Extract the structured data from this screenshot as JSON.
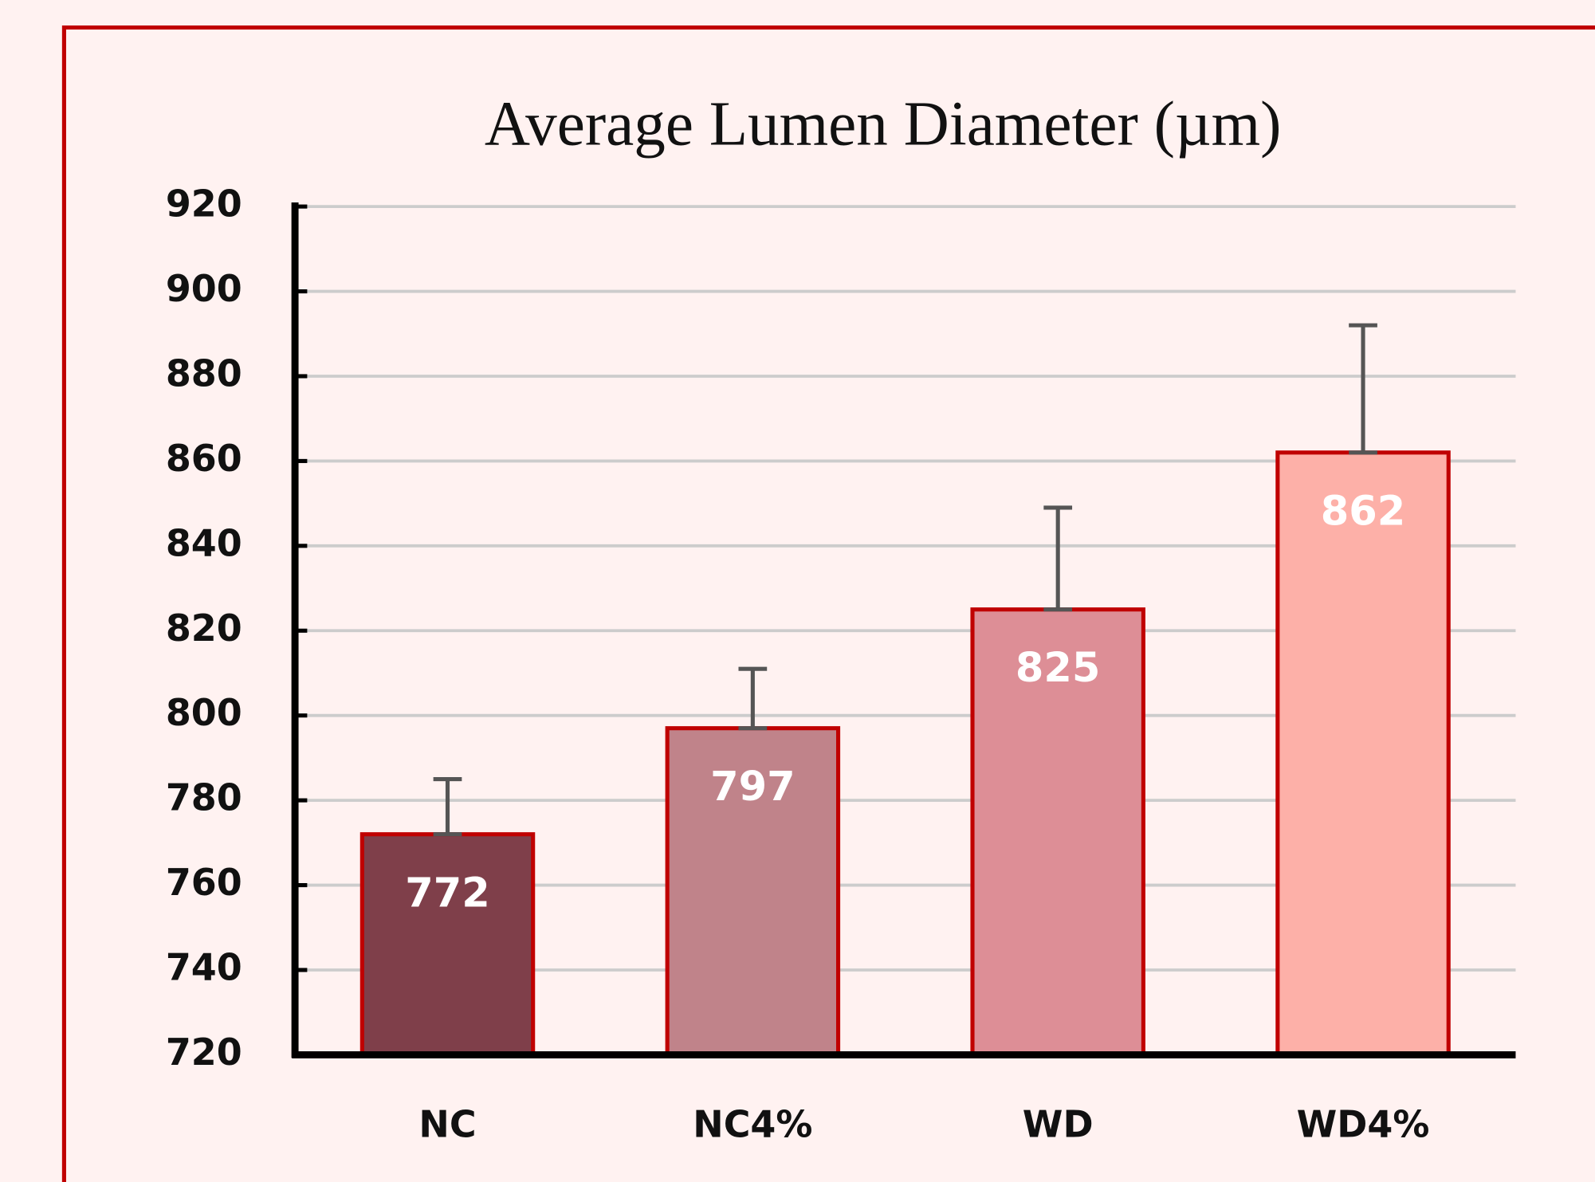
{
  "chart_data": {
    "type": "bar",
    "title": "Average Lumen Diameter (µm)",
    "categories": [
      "NC",
      "NC4%",
      "WD",
      "WD4%"
    ],
    "values": [
      772,
      797,
      825,
      862
    ],
    "errors": [
      13,
      14,
      24,
      30
    ],
    "colors": [
      "#7f3f4a",
      "#c0838a",
      "#dd8e96",
      "#fdb0a8"
    ],
    "ylim": [
      720,
      920
    ],
    "yticks": [
      720,
      740,
      760,
      780,
      800,
      820,
      840,
      860,
      880,
      900,
      920
    ],
    "grid": true
  }
}
